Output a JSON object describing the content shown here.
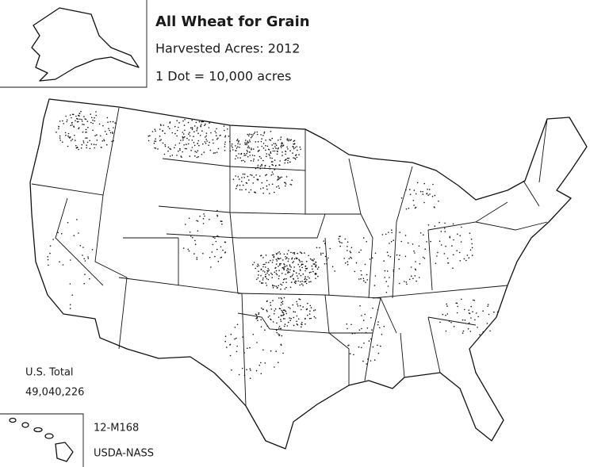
{
  "title": "All Wheat for Grain",
  "subtitle": "Harvested Acres: 2012",
  "legend": "1 Dot = 10,000 acres",
  "total": {
    "label": "U.S. Total",
    "value": "49,040,226"
  },
  "footer": {
    "code": "12-M168",
    "source": "USDA-NASS"
  }
}
